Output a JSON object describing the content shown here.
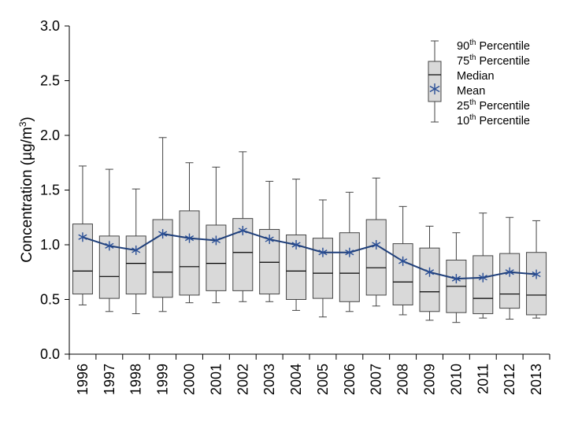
{
  "chart_data": {
    "type": "box",
    "title": "",
    "xlabel": "",
    "ylabel": "Concentration (µg/m³)",
    "ylabel_parts": {
      "main": "Concentration (µg/m",
      "sup": "3",
      "end": ")"
    },
    "ylim": [
      0,
      3.0
    ],
    "yticks": [
      "0.0",
      "0.5",
      "1.0",
      "1.5",
      "2.0",
      "2.5",
      "3.0"
    ],
    "grid": false,
    "legend_position": "top-right",
    "categories": [
      "1996",
      "1997",
      "1998",
      "1999",
      "2000",
      "2001",
      "2002",
      "2003",
      "2004",
      "2005",
      "2006",
      "2007",
      "2008",
      "2009",
      "2010",
      "2011",
      "2012",
      "2013"
    ],
    "series": [
      {
        "name": "10th Percentile",
        "values": [
          0.45,
          0.39,
          0.37,
          0.39,
          0.47,
          0.47,
          0.48,
          0.48,
          0.4,
          0.34,
          0.39,
          0.44,
          0.36,
          0.31,
          0.29,
          0.33,
          0.32,
          0.33
        ]
      },
      {
        "name": "25th Percentile",
        "values": [
          0.55,
          0.51,
          0.55,
          0.52,
          0.54,
          0.58,
          0.58,
          0.55,
          0.5,
          0.51,
          0.48,
          0.54,
          0.45,
          0.39,
          0.38,
          0.37,
          0.42,
          0.36
        ]
      },
      {
        "name": "Median",
        "values": [
          0.76,
          0.71,
          0.83,
          0.75,
          0.8,
          0.83,
          0.93,
          0.84,
          0.76,
          0.74,
          0.74,
          0.79,
          0.66,
          0.57,
          0.62,
          0.51,
          0.55,
          0.54
        ]
      },
      {
        "name": "75th Percentile",
        "values": [
          1.19,
          1.08,
          1.08,
          1.23,
          1.31,
          1.18,
          1.24,
          1.14,
          1.09,
          1.06,
          1.11,
          1.23,
          1.01,
          0.97,
          0.86,
          0.9,
          0.92,
          0.93
        ]
      },
      {
        "name": "90th Percentile",
        "values": [
          1.72,
          1.69,
          1.51,
          1.98,
          1.75,
          1.71,
          1.85,
          1.58,
          1.6,
          1.41,
          1.48,
          1.61,
          1.35,
          1.17,
          1.11,
          1.29,
          1.25,
          1.22
        ]
      },
      {
        "name": "Mean",
        "values": [
          1.07,
          0.99,
          0.95,
          1.1,
          1.06,
          1.04,
          1.13,
          1.05,
          1.0,
          0.93,
          0.93,
          1.0,
          0.85,
          0.75,
          0.69,
          0.7,
          0.75,
          0.73
        ]
      }
    ],
    "legend": [
      {
        "label": "90",
        "sup": "th",
        "rest": " Percentile"
      },
      {
        "label": "75",
        "sup": "th",
        "rest": " Percentile"
      },
      {
        "label": "Median",
        "sup": "",
        "rest": ""
      },
      {
        "label": "Mean",
        "sup": "",
        "rest": ""
      },
      {
        "label": "25",
        "sup": "th",
        "rest": " Percentile"
      },
      {
        "label": "10",
        "sup": "th",
        "rest": " Percentile"
      }
    ],
    "colors": {
      "box_fill": "#d9d9d9",
      "box_stroke": "#444444",
      "mean_line": "#1f3f7a",
      "mean_marker": "#2a4f96",
      "axis": "#000000"
    }
  }
}
